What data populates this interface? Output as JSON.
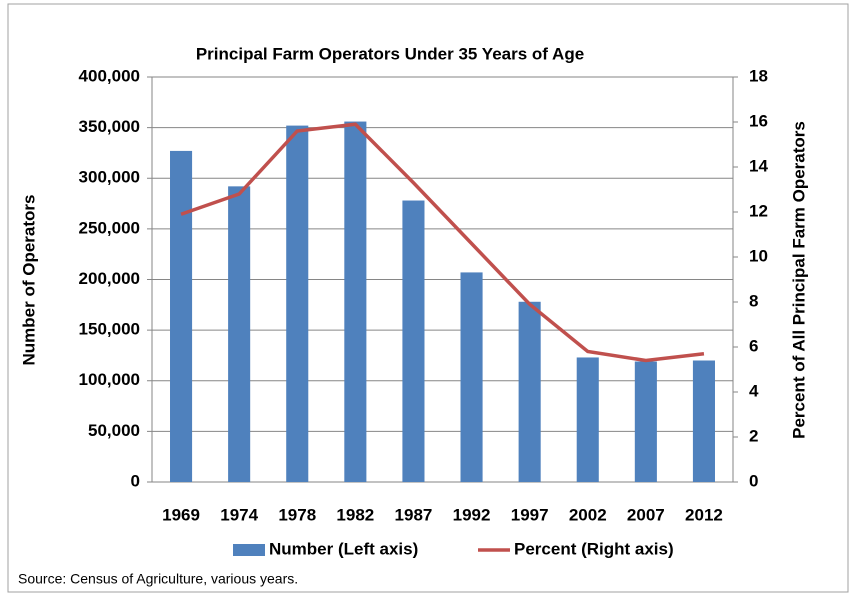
{
  "chart_data": {
    "type": "bar-line",
    "title": "Principal Farm Operators Under 35 Years of Age",
    "y_label": "Number of Operators",
    "y2_label": "Percent of All Principal Farm Operators",
    "source": "Source:  Census of Agriculture, various years.",
    "categories": [
      "1969",
      "1974",
      "1978",
      "1982",
      "1987",
      "1992",
      "1997",
      "2002",
      "2007",
      "2012"
    ],
    "series": [
      {
        "name": "Number (Left axis)",
        "type": "bar",
        "color": "#4f81bd",
        "values": [
          327000,
          292000,
          352000,
          356000,
          278000,
          207000,
          178000,
          123000,
          119000,
          120000
        ]
      },
      {
        "name": "Percent (Right axis)",
        "type": "line",
        "axis": "y2",
        "color": "#c0504d",
        "values": [
          11.9,
          12.8,
          15.6,
          15.9,
          13.3,
          10.6,
          7.9,
          5.8,
          5.4,
          5.7
        ]
      }
    ],
    "ylim": [
      0,
      400000
    ],
    "yticks": [
      0,
      {
        "value": 50000,
        "label": "50,000"
      },
      {
        "value": 100000,
        "label": "100,000"
      },
      {
        "value": 150000,
        "label": "150,000"
      },
      {
        "value": 200000,
        "label": "200,000"
      },
      {
        "value": 250000,
        "label": "250,000"
      },
      {
        "value": 300000,
        "label": "300,000"
      },
      {
        "value": 350000,
        "label": "350,000"
      },
      {
        "value": 400000,
        "label": "400,000"
      }
    ],
    "y2lim": [
      0,
      18
    ],
    "y2ticks": [
      0,
      2,
      4,
      6,
      8,
      10,
      12,
      14,
      16,
      18
    ],
    "grid": true,
    "legend": "bottom"
  }
}
